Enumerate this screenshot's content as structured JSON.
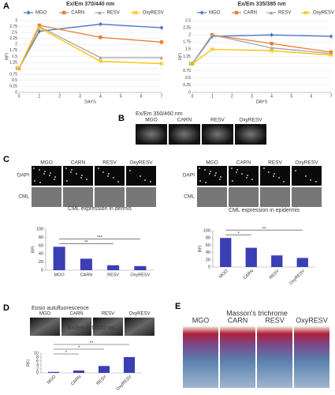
{
  "chart_data": [
    {
      "type": "line",
      "title": "Ex/Em 370/440 nm",
      "x_label": "DAYS",
      "y_label": "RFI",
      "x": [
        0,
        1,
        4,
        7
      ],
      "xlim": [
        0,
        7
      ],
      "xticks": [
        0,
        1,
        2,
        3,
        4,
        5,
        6,
        7
      ],
      "ylim": [
        0,
        3
      ],
      "yticks": [
        0,
        0.25,
        0.5,
        0.75,
        1,
        1.25,
        1.5,
        1.75,
        2,
        2.25,
        2.5,
        2.75,
        3
      ],
      "series": [
        {
          "name": "MGO",
          "color": "#4472c4",
          "values": [
            1,
            2.55,
            2.85,
            2.7
          ]
        },
        {
          "name": "CARN",
          "color": "#ed7d31",
          "values": [
            1,
            2.8,
            2.3,
            2.1
          ]
        },
        {
          "name": "RESV",
          "color": "#a5a5a5",
          "values": [
            1,
            2.75,
            1.45,
            1.45
          ]
        },
        {
          "name": "OxyRESV",
          "color": "#ffc000",
          "values": [
            1,
            2.7,
            1.3,
            1.2
          ]
        }
      ]
    },
    {
      "type": "line",
      "title": "Ex/Em 335/385 nm",
      "x_label": "DAYS",
      "y_label": "RFI",
      "x": [
        0,
        1,
        4,
        7
      ],
      "xlim": [
        0,
        7
      ],
      "xticks": [
        0,
        1,
        2,
        3,
        4,
        5,
        6,
        7
      ],
      "ylim": [
        0,
        2.5
      ],
      "yticks": [
        0,
        0.25,
        0.5,
        0.75,
        1,
        1.25,
        1.5,
        1.75,
        2,
        2.25,
        2.5
      ],
      "series": [
        {
          "name": "MGO",
          "color": "#4472c4",
          "values": [
            1,
            1.95,
            2.0,
            1.95
          ]
        },
        {
          "name": "CARN",
          "color": "#ed7d31",
          "values": [
            1,
            2.0,
            1.7,
            1.4
          ]
        },
        {
          "name": "RESV",
          "color": "#a5a5a5",
          "values": [
            1,
            2.0,
            1.55,
            1.35
          ]
        },
        {
          "name": "OxyRESV",
          "color": "#ffc000",
          "values": [
            1,
            1.5,
            1.45,
            1.3
          ]
        }
      ]
    },
    {
      "type": "bar",
      "title": "CML expression in dermis",
      "y_label": "RFI",
      "color": "#3b3fb3",
      "categories": [
        "MGO",
        "CARN",
        "RESV",
        "OxyRESV"
      ],
      "values": [
        57,
        28,
        12,
        10
      ],
      "ylim": [
        0,
        100
      ],
      "yticks": [
        0,
        20,
        40,
        60,
        80,
        100
      ],
      "brackets": [
        {
          "label": "**",
          "from": 0,
          "to": 2
        },
        {
          "label": "***",
          "from": 0,
          "to": 3
        }
      ]
    },
    {
      "type": "bar",
      "title": "CML expression in epidermis",
      "y_label": "RFI",
      "color": "#3b3fb3",
      "categories": [
        "MGO",
        "CARN",
        "RESV",
        "OxyRESV"
      ],
      "values": [
        80,
        53,
        32,
        25
      ],
      "ylim": [
        0,
        100
      ],
      "yticks": [
        0,
        20,
        40,
        60,
        80,
        100
      ],
      "brackets": [
        {
          "label": "*",
          "from": 0,
          "to": 1
        },
        {
          "label": "**",
          "from": 0,
          "to": 3
        }
      ]
    },
    {
      "type": "bar",
      "title": "Ex/Em 495/520 nm",
      "y_label": "RFI",
      "color": "#3b3fb3",
      "categories": [
        "MGO",
        "CARN",
        "RESV",
        "OxyRESV"
      ],
      "values": [
        0.5,
        1.2,
        3.5,
        8
      ],
      "ylim": [
        0,
        10
      ],
      "yticks": [
        0,
        2,
        4,
        6,
        8,
        10
      ],
      "brackets": [
        {
          "label": "*",
          "from": 0,
          "to": 1
        },
        {
          "label": "*",
          "from": 0,
          "to": 2
        },
        {
          "label": "**",
          "from": 0,
          "to": 3
        }
      ]
    }
  ],
  "panels": {
    "A": {
      "letter": "A"
    },
    "B": {
      "letter": "B",
      "caption": "Ex/Em 350/460 nm",
      "images": [
        "MGO",
        "CARN",
        "RESV",
        "OxyRESV"
      ]
    },
    "C": {
      "letter": "C",
      "grids": [
        {
          "columns": [
            "MGO",
            "CARN",
            "RESV",
            "OxyRESV"
          ],
          "rows": [
            "DAPI",
            "CML"
          ]
        },
        {
          "columns": [
            "MGO",
            "CARN",
            "RESV",
            "OxyRESV"
          ],
          "rows": [
            "DAPI",
            "CML"
          ]
        }
      ]
    },
    "D": {
      "letter": "D",
      "caption": "Eosin autofluorescence",
      "images": [
        "MGO",
        "CARN",
        "RESV",
        "OxyRESV"
      ]
    },
    "E": {
      "letter": "E",
      "caption": "Masson's trichrome",
      "images": [
        "MGO",
        "CARN",
        "RESV",
        "OxyRESV"
      ]
    }
  }
}
